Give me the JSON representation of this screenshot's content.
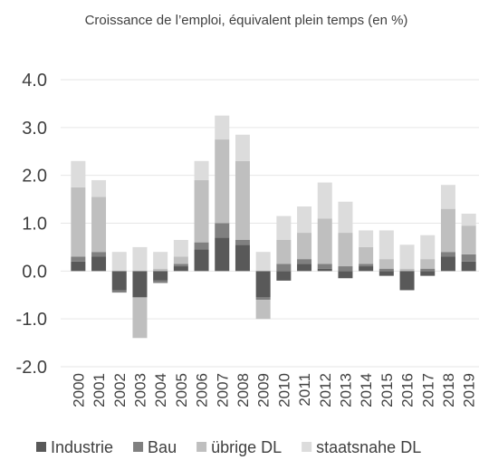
{
  "chart_data": {
    "type": "stacked_bar",
    "title": "Croissance de l’emploi, équivalent plein temps (en %)",
    "categories": [
      "2000",
      "2001",
      "2002",
      "2003",
      "2004",
      "2005",
      "2006",
      "2007",
      "2008",
      "2009",
      "2010",
      "2011",
      "2012",
      "2013",
      "2014",
      "2015",
      "2016",
      "2017",
      "2018",
      "2019"
    ],
    "series": [
      {
        "name": "Industrie",
        "color": "#595959",
        "values": [
          0.2,
          0.3,
          -0.4,
          -0.55,
          -0.2,
          0.1,
          0.45,
          0.7,
          0.55,
          -0.55,
          -0.2,
          0.15,
          0.05,
          -0.15,
          0.1,
          -0.1,
          -0.4,
          -0.1,
          0.3,
          0.2
        ]
      },
      {
        "name": "Bau",
        "color": "#808080",
        "values": [
          0.1,
          0.1,
          -0.05,
          0,
          -0.05,
          0.05,
          0.15,
          0.3,
          0.1,
          -0.05,
          0.15,
          0.1,
          0.1,
          0.1,
          0.05,
          0.05,
          0,
          0.05,
          0.1,
          0.15
        ]
      },
      {
        "name": "übrige DL",
        "color": "#bfbfbf",
        "values": [
          1.45,
          1.15,
          0,
          -0.85,
          0.05,
          0.15,
          1.3,
          1.75,
          1.65,
          -0.4,
          0.5,
          0.55,
          0.95,
          0.7,
          0.35,
          0.2,
          0.05,
          0.2,
          0.9,
          0.6
        ]
      },
      {
        "name": "staatsnahe DL",
        "color": "#dcdcdc",
        "values": [
          0.55,
          0.35,
          0.4,
          0.5,
          0.35,
          0.35,
          0.4,
          0.5,
          0.55,
          0.4,
          0.5,
          0.55,
          0.75,
          0.65,
          0.35,
          0.6,
          0.5,
          0.5,
          0.5,
          0.25
        ]
      }
    ],
    "ylim": [
      -2,
      4
    ],
    "yticks": [
      {
        "value": -2,
        "label": "-2.0"
      },
      {
        "value": -1,
        "label": "-1.0"
      },
      {
        "value": 0,
        "label": "0.0"
      },
      {
        "value": 1,
        "label": "1.0"
      },
      {
        "value": 2,
        "label": "2.0"
      },
      {
        "value": 3,
        "label": "3.0"
      },
      {
        "value": 4,
        "label": "4.0"
      }
    ],
    "grid": true
  }
}
